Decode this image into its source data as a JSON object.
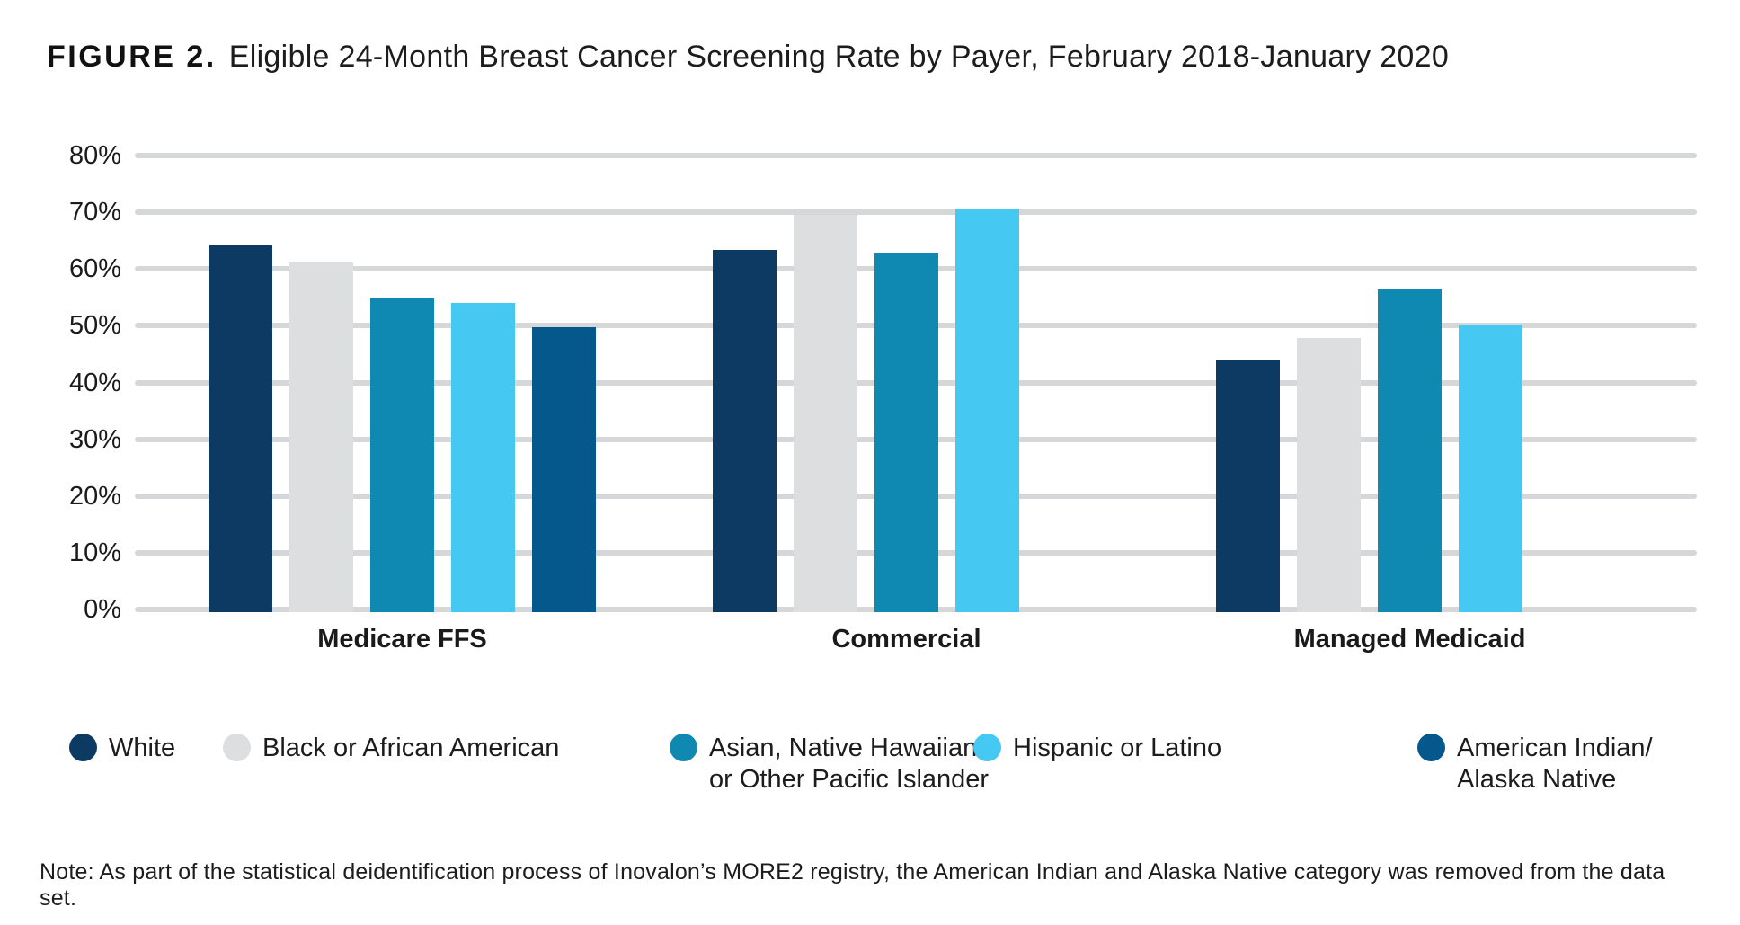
{
  "figure": {
    "label": "FIGURE 2.",
    "title": "Eligible 24-Month Breast Cancer Screening Rate by Payer, February 2018-January 2020"
  },
  "note": "Note: As part of the statistical deidentification process of Inovalon’s MORE2 registry, the American Indian and Alaska Native category was removed from the data set.",
  "chart_data": {
    "type": "bar",
    "title": "Eligible 24-Month Breast Cancer Screening Rate by Payer, February 2018-January 2020",
    "categories": [
      "Medicare FFS",
      "Commercial",
      "Managed Medicaid"
    ],
    "series": [
      {
        "name": "White",
        "color": "#0d3a63",
        "values": [
          64.1,
          63.3,
          44.1
        ]
      },
      {
        "name": "Black or African American",
        "color": "#dcdee0",
        "values": [
          61.2,
          69.5,
          47.8
        ]
      },
      {
        "name": "Asian, Native Hawaiian or Other Pacific Islander",
        "color": "#0f89b2",
        "values": [
          54.8,
          62.9,
          56.5
        ]
      },
      {
        "name": "Hispanic or Latino",
        "color": "#45c8f1",
        "values": [
          54.1,
          70.7,
          50.0
        ]
      },
      {
        "name": "American Indian/Alaska Native",
        "color": "#05588c",
        "values": [
          49.8,
          null,
          null
        ]
      }
    ],
    "xlabel": "",
    "ylabel": "",
    "ylim": [
      0,
      80
    ],
    "yticks": [
      "0%",
      "10%",
      "20%",
      "30%",
      "40%",
      "50%",
      "60%",
      "70%",
      "80%"
    ],
    "grid": true,
    "gridline_color": "#d5d7d8",
    "legend_position": "bottom",
    "missing_data_note_applies_to": [
      "Commercial",
      "Managed Medicaid"
    ]
  },
  "legend": {
    "items": [
      {
        "label": "White"
      },
      {
        "label": "Black or African American"
      },
      {
        "label": "Asian, Native Hawaiian\nor Other Pacific Islander"
      },
      {
        "label": "Hispanic or Latino"
      },
      {
        "label": "American Indian/\nAlaska Native"
      }
    ]
  }
}
